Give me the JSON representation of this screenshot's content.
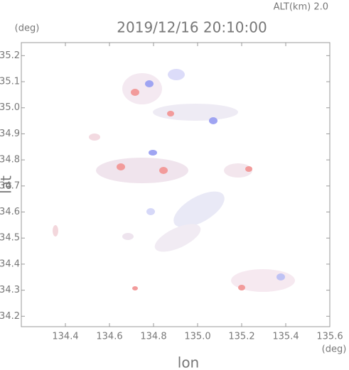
{
  "chart_data": {
    "type": "map",
    "title": "2019/12/16 20:10:00",
    "subtitle": "ALT(km) 2.0",
    "x_label": "lon",
    "y_label": "lat",
    "x_unit": "(deg)",
    "y_unit": "(deg)",
    "xlim": [
      134.2,
      135.6
    ],
    "xticks": [
      134.4,
      134.6,
      134.8,
      {
        "value": 135,
        "label": "135.0"
      },
      135.2,
      135.4,
      135.6
    ],
    "ylim": [
      34.16,
      35.25
    ],
    "yticks": [
      34.2,
      34.3,
      34.4,
      34.5,
      34.6,
      34.7,
      34.8,
      34.9,
      {
        "value": 35,
        "label": "35.0"
      },
      35.1,
      35.2
    ]
  }
}
